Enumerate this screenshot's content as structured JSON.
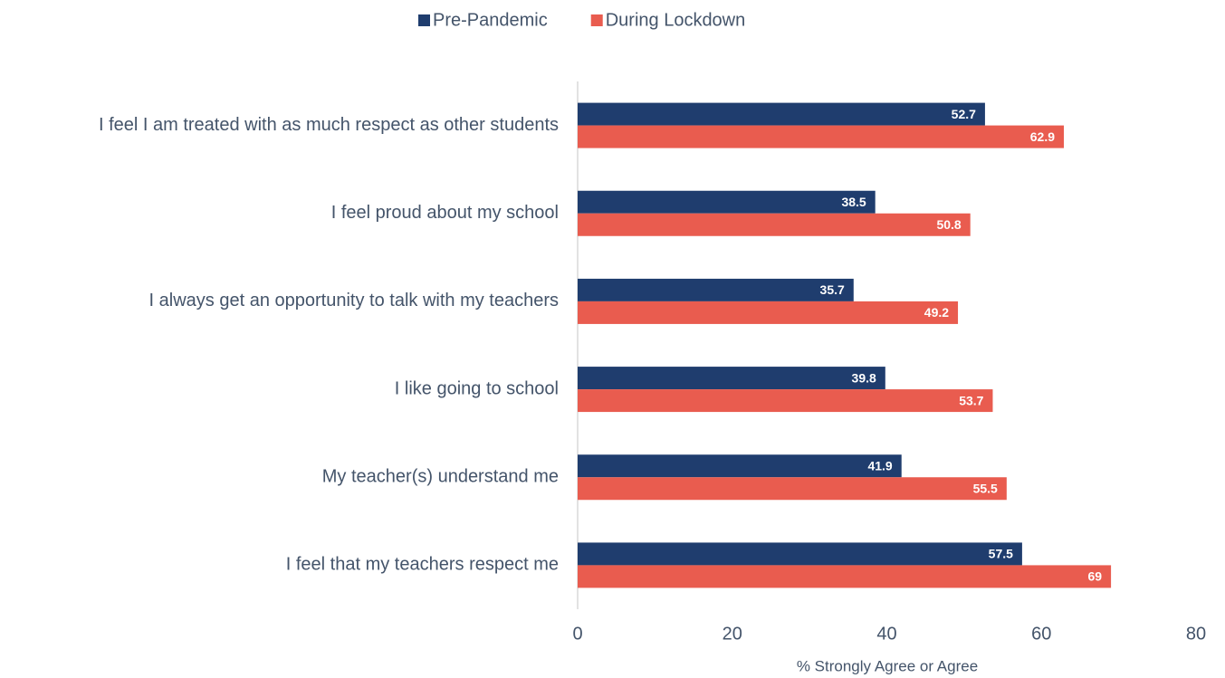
{
  "chart_data": {
    "type": "hbar",
    "categories": [
      "I feel I am treated with as much respect as other students",
      "I feel proud about my school",
      "I always get an opportunity to talk with my teachers",
      "I like going to school",
      "My teacher(s) understand me",
      "I feel that my teachers respect me"
    ],
    "series": [
      {
        "name": "Pre-Pandemic",
        "color": "#1f3d6e",
        "values": [
          52.7,
          38.5,
          35.7,
          39.8,
          41.9,
          57.5
        ]
      },
      {
        "name": "During Lockdown",
        "color": "#e95c4f",
        "values": [
          62.9,
          50.8,
          49.2,
          53.7,
          55.5,
          69
        ]
      }
    ],
    "x_label": "% Strongly Agree or Agree",
    "xlim": [
      0,
      80
    ],
    "xticks": [
      0,
      20,
      40,
      60,
      80
    ],
    "legend": "top",
    "grid": false
  }
}
